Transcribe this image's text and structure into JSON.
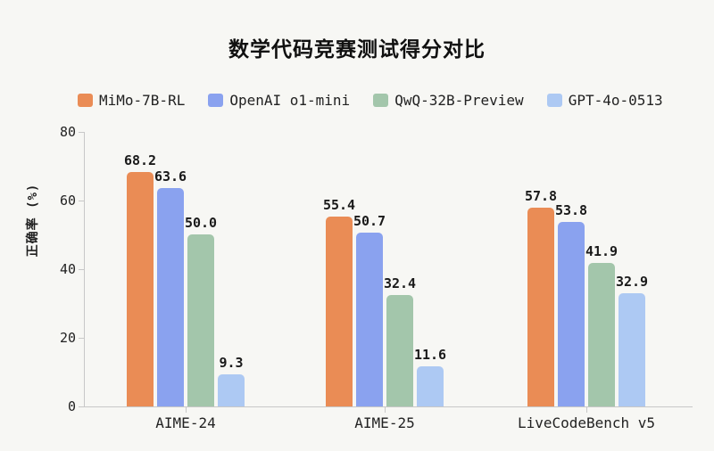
{
  "page": {
    "background": "#f7f7f4"
  },
  "chart_data": {
    "type": "bar",
    "title": "数学代码竞赛测试得分对比",
    "xlabel": "",
    "ylabel": "正确率 (%)",
    "ylim": [
      0,
      80
    ],
    "yticks": [
      0,
      20,
      40,
      60,
      80
    ],
    "grid": false,
    "legend_position": "top-left",
    "value_labels": true,
    "categories": [
      "AIME-24",
      "AIME-25",
      "LiveCodeBench v5"
    ],
    "series": [
      {
        "name": "MiMo-7B-RL",
        "color": "#ea8c55",
        "values": [
          68.2,
          55.4,
          57.8
        ]
      },
      {
        "name": "OpenAI o1-mini",
        "color": "#8aa2ef",
        "values": [
          63.6,
          50.7,
          53.8
        ]
      },
      {
        "name": "QwQ-32B-Preview",
        "color": "#a3c6ab",
        "values": [
          50.0,
          32.4,
          41.9
        ]
      },
      {
        "name": "GPT-4o-0513",
        "color": "#adc9f3",
        "values": [
          9.3,
          11.6,
          32.9
        ]
      }
    ],
    "axis_color": "#c8c8c8",
    "text_color": "#1f1f1f"
  }
}
